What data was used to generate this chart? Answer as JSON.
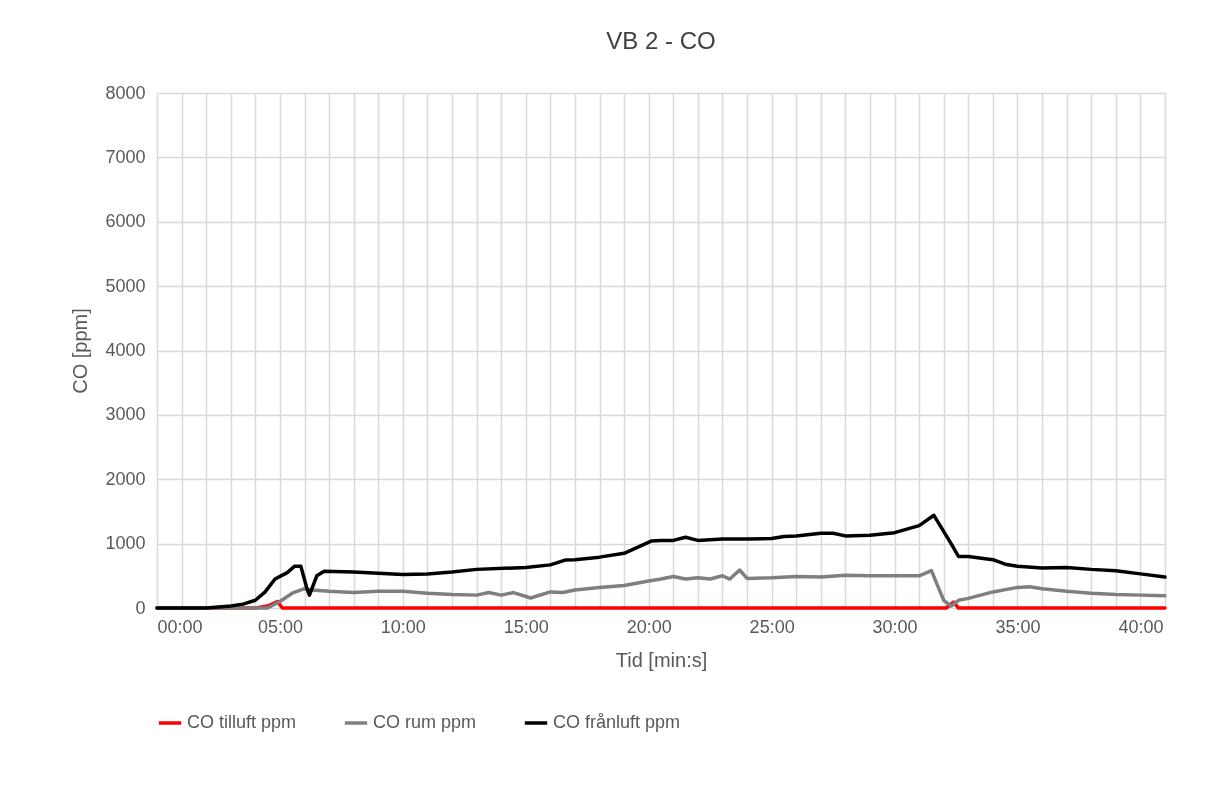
{
  "chart_data": {
    "type": "line",
    "title": "VB 2 - CO",
    "xlabel": "Tid [min:s]",
    "ylabel": "CO [ppm]",
    "xlim": [
      0,
      41
    ],
    "ylim": [
      0,
      8000
    ],
    "xticks": [
      {
        "value": 0,
        "label": "00:00"
      },
      {
        "value": 1,
        "label": null
      },
      {
        "value": 2,
        "label": null
      },
      {
        "value": 3,
        "label": null
      },
      {
        "value": 4,
        "label": null
      },
      {
        "value": 5,
        "label": "05:00"
      },
      {
        "value": 6,
        "label": null
      },
      {
        "value": 7,
        "label": null
      },
      {
        "value": 8,
        "label": null
      },
      {
        "value": 9,
        "label": null
      },
      {
        "value": 10,
        "label": "10:00"
      },
      {
        "value": 11,
        "label": null
      },
      {
        "value": 12,
        "label": null
      },
      {
        "value": 13,
        "label": null
      },
      {
        "value": 14,
        "label": null
      },
      {
        "value": 15,
        "label": "15:00"
      },
      {
        "value": 16,
        "label": null
      },
      {
        "value": 17,
        "label": null
      },
      {
        "value": 18,
        "label": null
      },
      {
        "value": 19,
        "label": null
      },
      {
        "value": 20,
        "label": "20:00"
      },
      {
        "value": 21,
        "label": null
      },
      {
        "value": 22,
        "label": null
      },
      {
        "value": 23,
        "label": null
      },
      {
        "value": 24,
        "label": null
      },
      {
        "value": 25,
        "label": "25:00"
      },
      {
        "value": 26,
        "label": null
      },
      {
        "value": 27,
        "label": null
      },
      {
        "value": 28,
        "label": null
      },
      {
        "value": 29,
        "label": null
      },
      {
        "value": 30,
        "label": "30:00"
      },
      {
        "value": 31,
        "label": null
      },
      {
        "value": 32,
        "label": null
      },
      {
        "value": 33,
        "label": null
      },
      {
        "value": 34,
        "label": null
      },
      {
        "value": 35,
        "label": "35:00"
      },
      {
        "value": 36,
        "label": null
      },
      {
        "value": 37,
        "label": null
      },
      {
        "value": 38,
        "label": null
      },
      {
        "value": 39,
        "label": null
      },
      {
        "value": 40,
        "label": "40:00"
      },
      {
        "value": 41,
        "label": null
      }
    ],
    "yticks": [
      0,
      1000,
      2000,
      3000,
      4000,
      5000,
      6000,
      7000,
      8000
    ],
    "grid": true,
    "legend": "bottom",
    "series": [
      {
        "name": "CO tilluft ppm",
        "color": "#ff0000",
        "x": [
          0,
          4,
          4.5,
          4.9,
          5.1,
          32.1,
          32.4,
          32.6,
          41
        ],
        "values": [
          0,
          0,
          30,
          100,
          0,
          0,
          90,
          0,
          0
        ]
      },
      {
        "name": "CO rum ppm",
        "color": "#7f7f7f",
        "x": [
          0,
          4.5,
          5,
          5.5,
          6,
          6.3,
          7,
          8,
          9,
          10,
          11,
          12,
          13,
          13.5,
          14,
          14.5,
          15.2,
          16,
          16.5,
          17,
          18,
          19,
          20,
          20.5,
          21,
          21.5,
          22,
          22.5,
          23,
          23.3,
          23.7,
          24,
          25,
          26,
          27,
          28,
          29,
          30,
          31,
          31.5,
          31.8,
          32,
          32.3,
          32.6,
          33,
          34,
          35,
          35.5,
          36,
          37,
          38,
          39,
          40,
          41
        ],
        "values": [
          0,
          0,
          100,
          230,
          300,
          280,
          260,
          240,
          260,
          260,
          230,
          210,
          200,
          240,
          200,
          240,
          155,
          250,
          240,
          280,
          320,
          350,
          420,
          450,
          490,
          450,
          470,
          450,
          500,
          450,
          590,
          460,
          470,
          490,
          480,
          510,
          500,
          500,
          500,
          580,
          300,
          120,
          30,
          120,
          150,
          250,
          320,
          330,
          300,
          260,
          230,
          210,
          200,
          190
        ]
      },
      {
        "name": "CO frånluft ppm",
        "color": "#000000",
        "x": [
          0,
          2,
          3,
          3.5,
          4,
          4.4,
          4.8,
          5.3,
          5.6,
          5.85,
          6.1,
          6.2,
          6.5,
          6.8,
          8,
          10,
          11,
          12,
          13,
          15,
          16,
          16.6,
          17,
          18,
          19,
          20.1,
          20.5,
          21,
          21.5,
          22,
          23,
          24,
          25,
          25.5,
          26,
          27,
          27.5,
          28,
          29,
          30,
          31,
          31.6,
          32.3,
          32.6,
          33,
          34,
          34.5,
          35,
          36,
          37,
          38,
          39,
          40,
          41
        ],
        "values": [
          0,
          0,
          30,
          60,
          120,
          250,
          450,
          550,
          650,
          650,
          300,
          200,
          500,
          570,
          560,
          520,
          530,
          560,
          600,
          630,
          670,
          745,
          750,
          790,
          850,
          1040,
          1050,
          1050,
          1100,
          1050,
          1070,
          1070,
          1080,
          1110,
          1120,
          1160,
          1160,
          1120,
          1130,
          1170,
          1280,
          1440,
          1000,
          800,
          800,
          750,
          680,
          650,
          620,
          630,
          600,
          580,
          530,
          480
        ]
      }
    ]
  }
}
